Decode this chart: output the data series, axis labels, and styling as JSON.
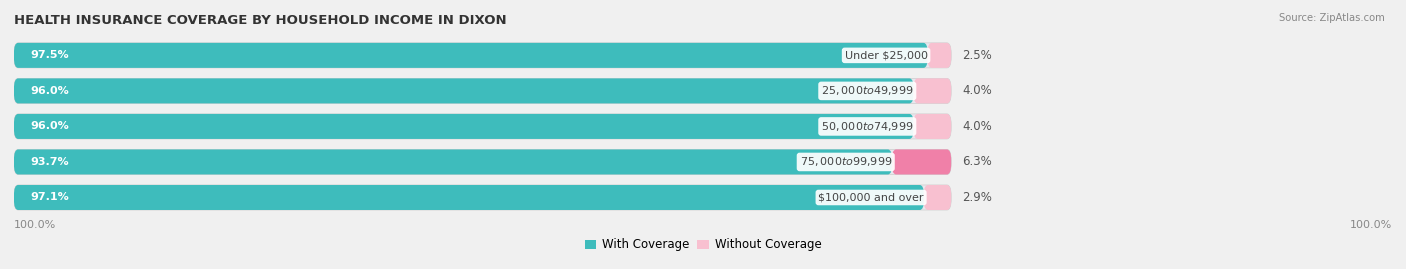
{
  "title": "HEALTH INSURANCE COVERAGE BY HOUSEHOLD INCOME IN DIXON",
  "source": "Source: ZipAtlas.com",
  "categories": [
    "Under $25,000",
    "$25,000 to $49,999",
    "$50,000 to $74,999",
    "$75,000 to $99,999",
    "$100,000 and over"
  ],
  "with_coverage": [
    97.5,
    96.0,
    96.0,
    93.7,
    97.1
  ],
  "without_coverage": [
    2.5,
    4.0,
    4.0,
    6.3,
    2.9
  ],
  "color_with": "#3ebcbc",
  "color_without": "#f080a8",
  "color_without_light": "#f8c0d0",
  "bg_color": "#f0f0f0",
  "bar_bg": "#e8e8ee",
  "bar_height": 0.68,
  "title_fontsize": 9.5,
  "label_fontsize": 8.0,
  "woc_fontsize": 8.5,
  "tick_label_fontsize": 8.0,
  "legend_fontsize": 8.5,
  "bar_scale": 0.68,
  "x_left_label": "100.0%",
  "x_right_label": "100.0%"
}
